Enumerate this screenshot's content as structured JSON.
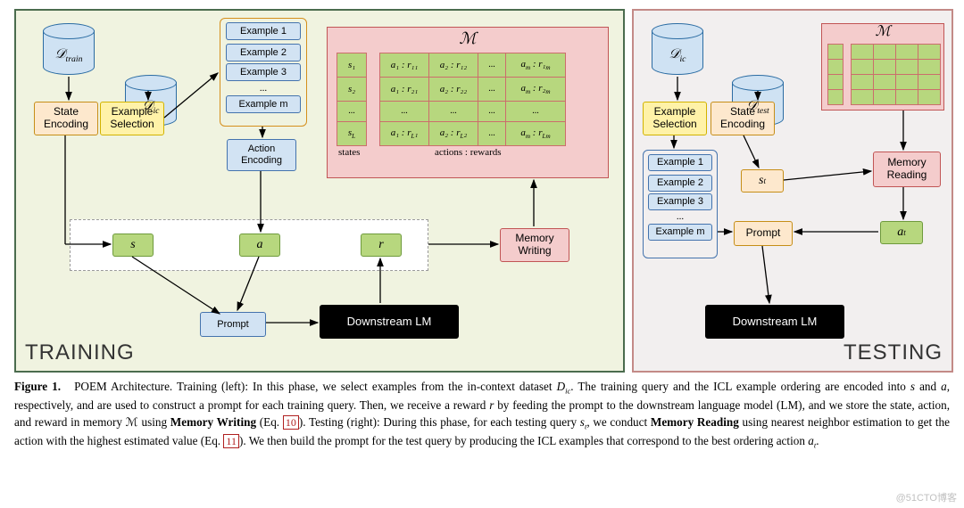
{
  "colors": {
    "training_bg": "#f0f3e0",
    "training_border": "#4b6c4e",
    "testing_bg": "#f2efef",
    "testing_border": "#c38a87",
    "db_fill": "#cfe2f3",
    "db_border": "#2b6ca3",
    "orange_fill": "#fde8cd",
    "orange_border": "#c68e17",
    "yellow_fill": "#fff2a8",
    "yellow_border": "#d2b300",
    "blue_fill": "#d2e3f3",
    "blue_border": "#4473ad",
    "green_fill": "#b7d77e",
    "green_border": "#6e9a3c",
    "pink_fill": "#f4cccc",
    "pink_border": "#c15555",
    "black_fill": "#000000",
    "dashed_border": "#9a9a9a",
    "arrow": "#000000"
  },
  "panels": {
    "training_label": "TRAINING",
    "testing_label": "TESTING"
  },
  "dbs": {
    "d_train": "𝒟<sub>train</sub>",
    "d_ic_1": "𝒟<sub>ic</sub>",
    "d_ic_2": "𝒟<sub>ic</sub>",
    "d_test": "𝒟<sub>test</sub>"
  },
  "boxes": {
    "state_encoding": "State\nEncoding",
    "example_selection": "Example\nSelection",
    "action_encoding": "Action\nEncoding",
    "memory_writing": "Memory\nWriting",
    "memory_reading": "Memory\nReading",
    "downstream_lm": "Downstream LM",
    "prompt": "Prompt"
  },
  "vars": {
    "s": "s",
    "a": "a",
    "r": "r",
    "st": "s<sub>t</sub>",
    "at": "a<sub>t</sub>"
  },
  "examples": {
    "items": [
      "Example 1",
      "Example 2",
      "Example 3",
      "...",
      "Example m"
    ]
  },
  "memory": {
    "title": "ℳ",
    "states_label": "states",
    "actions_label": "actions : rewards",
    "state_col": [
      "s₁",
      "s₂",
      "...",
      "s<sub>L</sub>"
    ],
    "grid": [
      [
        "a₁ : r₁₁",
        "a₂ : r₁₂",
        "...",
        "a<sub>m</sub> : r₁<sub>m</sub>"
      ],
      [
        "a₁ : r₂₁",
        "a₂ : r₂₂",
        "...",
        "a<sub>m</sub> : r₂<sub>m</sub>"
      ],
      [
        "...",
        "...",
        "...",
        "..."
      ],
      [
        "a₁ : r<sub>L</sub>₁",
        "a₂ : r<sub>L</sub>₂",
        "...",
        "a<sub>m</sub> : r<sub>Lm</sub>"
      ]
    ]
  },
  "caption": {
    "fig_label": "Figure 1.",
    "text_1": "POEM Architecture. Training (left): In this phase, we select examples from the in-context dataset ",
    "Dic": "D<sub>ic</sub>",
    "text_2": ". The training query and the ICL example ordering are encoded into ",
    "s": "s",
    "text_3": " and ",
    "a": "a",
    "text_4": ", respectively, and are used to construct a prompt for each training query. Then, we receive a reward ",
    "r": "r",
    "text_5": " by feeding the prompt to the downstream language model (LM), and we store the state, action, and reward in memory ℳ using ",
    "mw": "Memory Writing",
    "text_6": " (Eq. ",
    "eq10": "10",
    "text_7": "). Testing (right): During this phase, for each testing query ",
    "st": "s<sub>t</sub>",
    "text_8": ", we conduct ",
    "mr": "Memory Reading",
    "text_9": " using nearest neighbor estimation to get the action with the highest estimated value (Eq. ",
    "eq11": "11",
    "text_10": "). We then build the prompt for the test query by producing the ICL examples that correspond to the best ordering action ",
    "at": "a<sub>t</sub>",
    "text_11": "."
  },
  "watermark": "@51CTO博客"
}
